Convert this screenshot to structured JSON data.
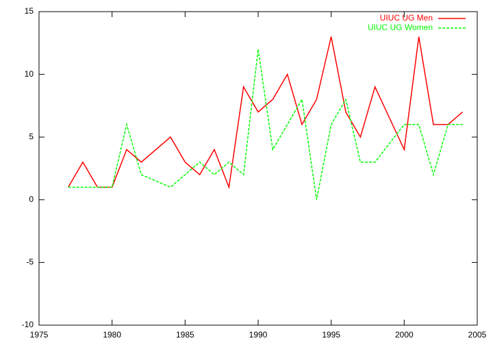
{
  "chart_data": {
    "type": "line",
    "series": [
      {
        "name": "UIUC UG Men",
        "color": "#ff0000",
        "dash": "solid",
        "x": [
          1977,
          1978,
          1979,
          1980,
          1981,
          1982,
          1984,
          1985,
          1986,
          1987,
          1988,
          1989,
          1990,
          1991,
          1992,
          1993,
          1994,
          1995,
          1996,
          1997,
          1998,
          2000,
          2001,
          2002,
          2003,
          2004
        ],
        "values": [
          1,
          3,
          1,
          1,
          4,
          3,
          5,
          3,
          2,
          4,
          1,
          9,
          7,
          8,
          10,
          6,
          8,
          13,
          7,
          5,
          9,
          4,
          13,
          6,
          6,
          7
        ]
      },
      {
        "name": "UIUC UG Women",
        "color": "#00ff00",
        "dash": "dashed",
        "x": [
          1977,
          1978,
          1979,
          1980,
          1981,
          1982,
          1984,
          1986,
          1987,
          1988,
          1989,
          1990,
          1991,
          1992,
          1993,
          1994,
          1995,
          1996,
          1997,
          1998,
          2000,
          2001,
          2002,
          2003,
          2004
        ],
        "values": [
          1,
          1,
          1,
          1,
          6,
          2,
          1,
          3,
          2,
          3,
          2,
          12,
          4,
          6,
          8,
          0,
          6,
          8,
          3,
          3,
          6,
          6,
          2,
          6,
          6
        ]
      }
    ],
    "xlim": [
      1975,
      2005
    ],
    "xticks": [
      1975,
      1980,
      1985,
      1990,
      1995,
      2000,
      2005
    ],
    "ylim": [
      -10,
      15
    ],
    "yticks": [
      -10,
      -5,
      0,
      5,
      10,
      15
    ],
    "grid": false,
    "legend": "top-right"
  }
}
